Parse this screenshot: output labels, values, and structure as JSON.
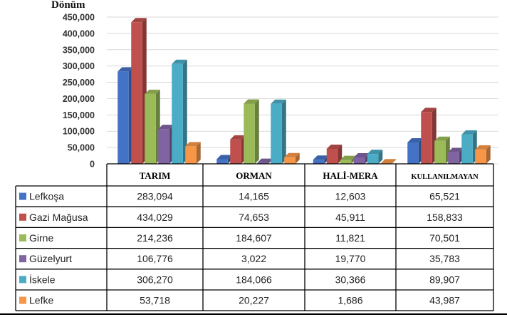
{
  "chart_data": {
    "type": "bar",
    "ylabel": "Dönüm",
    "ylim": [
      0,
      450000
    ],
    "yticks": [
      "0",
      "50,000",
      "100,000",
      "150,000",
      "200,000",
      "250,000",
      "300,000",
      "350,000",
      "400,000",
      "450,000"
    ],
    "categories": [
      "TARIM",
      "ORMAN",
      "HALİ-MERA",
      "KULLANILMAYAN"
    ],
    "grid": true,
    "legend": "data-table",
    "series": [
      {
        "name": "Lefkoşa",
        "color": "#4472c4",
        "values": [
          283094,
          14165,
          12603,
          65521
        ],
        "labels": [
          "283,094",
          "14,165",
          "12,603",
          "65,521"
        ]
      },
      {
        "name": "Gazi Mağusa",
        "color": "#c0504d",
        "values": [
          434029,
          74653,
          45911,
          158833
        ],
        "labels": [
          "434,029",
          "74,653",
          "45,911",
          "158,833"
        ]
      },
      {
        "name": "Girne",
        "color": "#9bbb59",
        "values": [
          214236,
          184607,
          11821,
          70501
        ],
        "labels": [
          "214,236",
          "184,607",
          "11,821",
          "70,501"
        ]
      },
      {
        "name": "Güzelyurt",
        "color": "#8064a2",
        "values": [
          106776,
          3022,
          19770,
          35783
        ],
        "labels": [
          "106,776",
          "3,022",
          "19,770",
          "35,783"
        ]
      },
      {
        "name": "İskele",
        "color": "#4bacc6",
        "values": [
          306270,
          184066,
          30366,
          89907
        ],
        "labels": [
          "306,270",
          "184,066",
          "30,366",
          "89,907"
        ]
      },
      {
        "name": "Lefke",
        "color": "#f79646",
        "values": [
          53718,
          20227,
          1686,
          43987
        ],
        "labels": [
          "53,718",
          "20,227",
          "1,686",
          "43,987"
        ]
      }
    ]
  }
}
